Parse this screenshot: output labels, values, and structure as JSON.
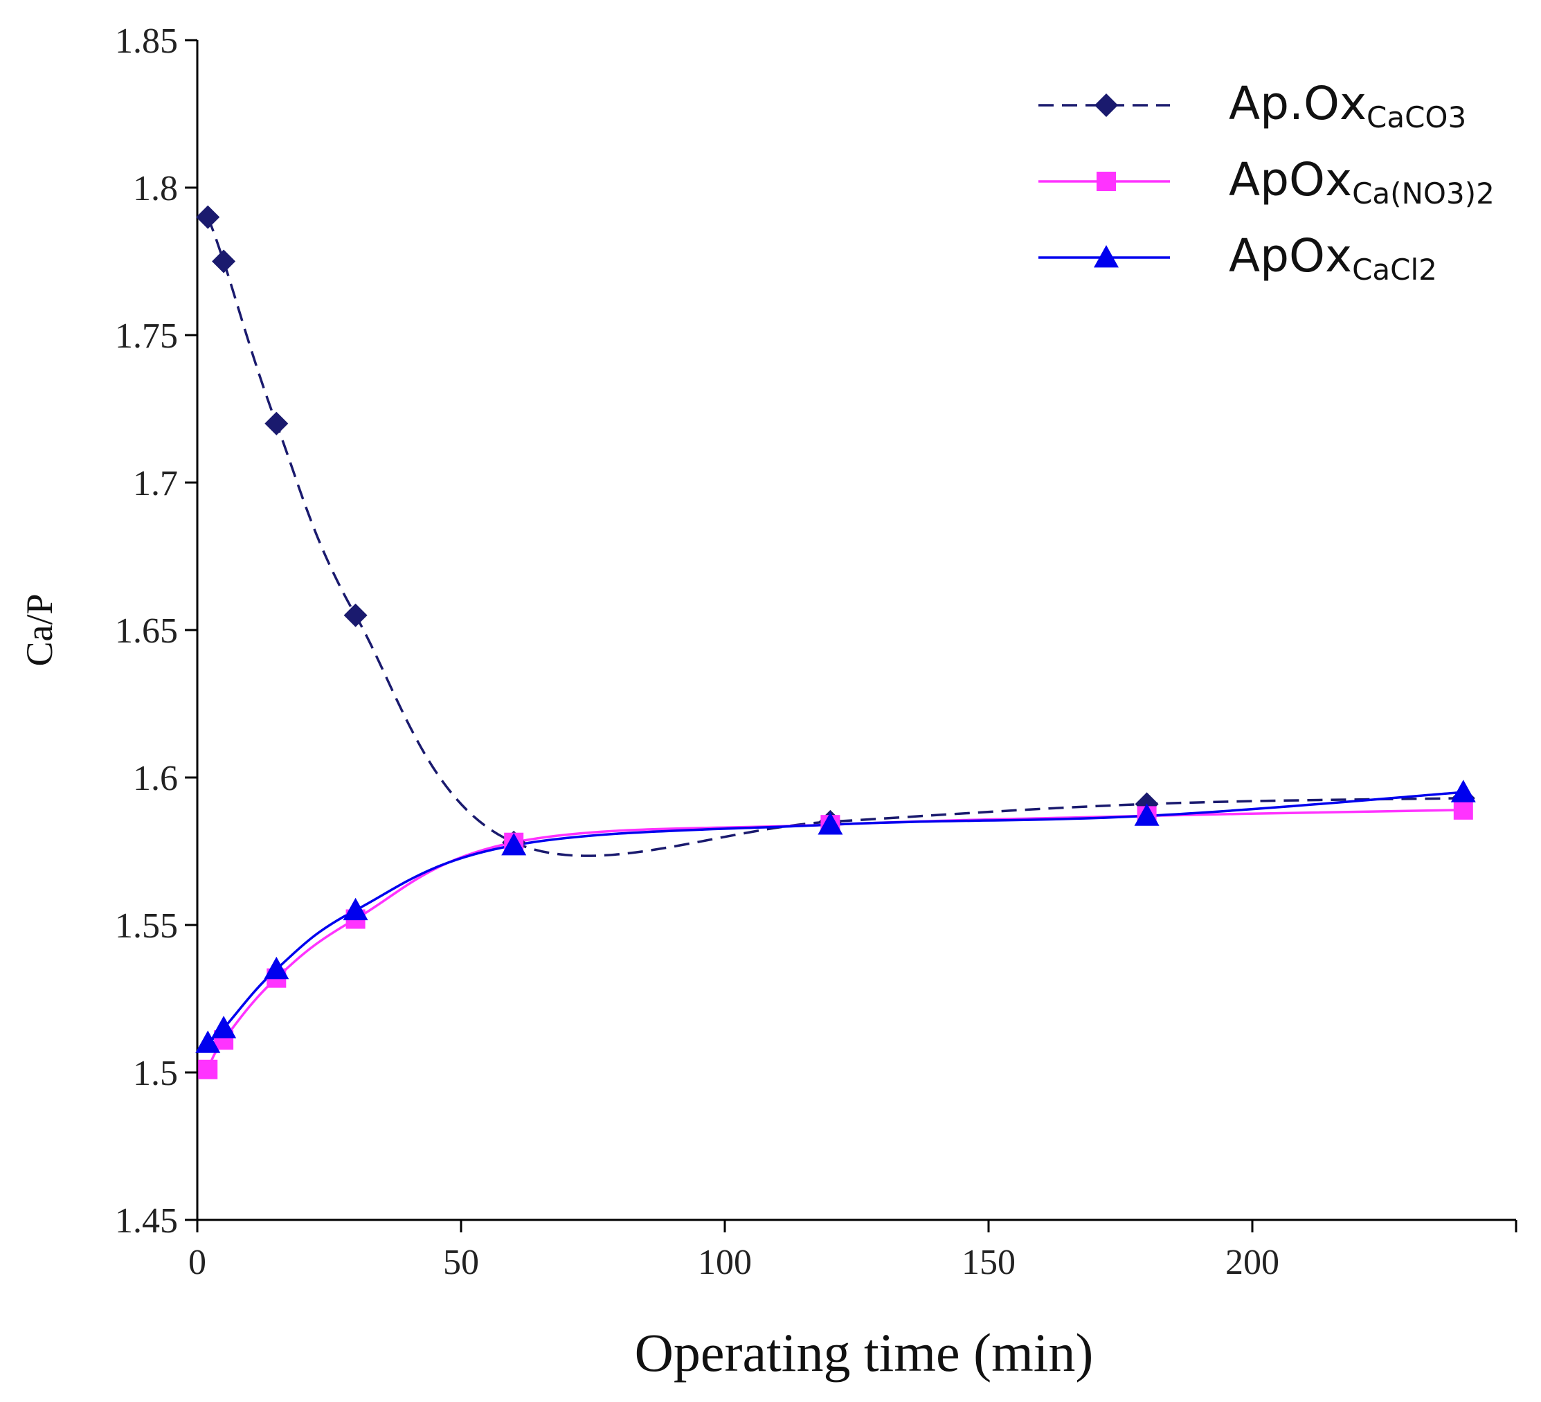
{
  "chart_data": {
    "type": "line",
    "title": "",
    "xlabel": "Operating time (min)",
    "ylabel": "Ca/P",
    "xlim": [
      0,
      250
    ],
    "ylim": [
      1.45,
      1.85
    ],
    "xticks": [
      0,
      50,
      100,
      150,
      200
    ],
    "yticks": [
      1.45,
      1.5,
      1.55,
      1.6,
      1.65,
      1.7,
      1.75,
      1.8,
      1.85
    ],
    "ytick_labels": [
      "1.45",
      "1.5",
      "1.55",
      "1.6",
      "1.65",
      "1.7",
      "1.75",
      "1.8",
      "1.85"
    ],
    "grid": false,
    "legend_position": "top-right",
    "series": [
      {
        "name": "Ap.Ox",
        "subscript": "CaCO3",
        "color": "#1a1a6e",
        "line_style": "dashed",
        "marker": "diamond",
        "x": [
          2,
          5,
          15,
          30,
          60,
          120,
          180,
          240
        ],
        "y": [
          1.79,
          1.775,
          1.72,
          1.655,
          1.578,
          1.585,
          1.591,
          1.593
        ]
      },
      {
        "name": "ApOx",
        "subscript": "Ca(NO3)2",
        "color": "#ff33ff",
        "line_style": "solid",
        "marker": "square",
        "x": [
          2,
          5,
          15,
          30,
          60,
          120,
          180,
          240
        ],
        "y": [
          1.501,
          1.511,
          1.532,
          1.552,
          1.578,
          1.584,
          1.587,
          1.589
        ]
      },
      {
        "name": "ApOx",
        "subscript": "CaCl2",
        "color": "#0000ee",
        "line_style": "solid",
        "marker": "triangle",
        "x": [
          2,
          5,
          15,
          30,
          60,
          120,
          180,
          240
        ],
        "y": [
          1.51,
          1.515,
          1.535,
          1.555,
          1.577,
          1.584,
          1.587,
          1.595
        ]
      }
    ]
  }
}
